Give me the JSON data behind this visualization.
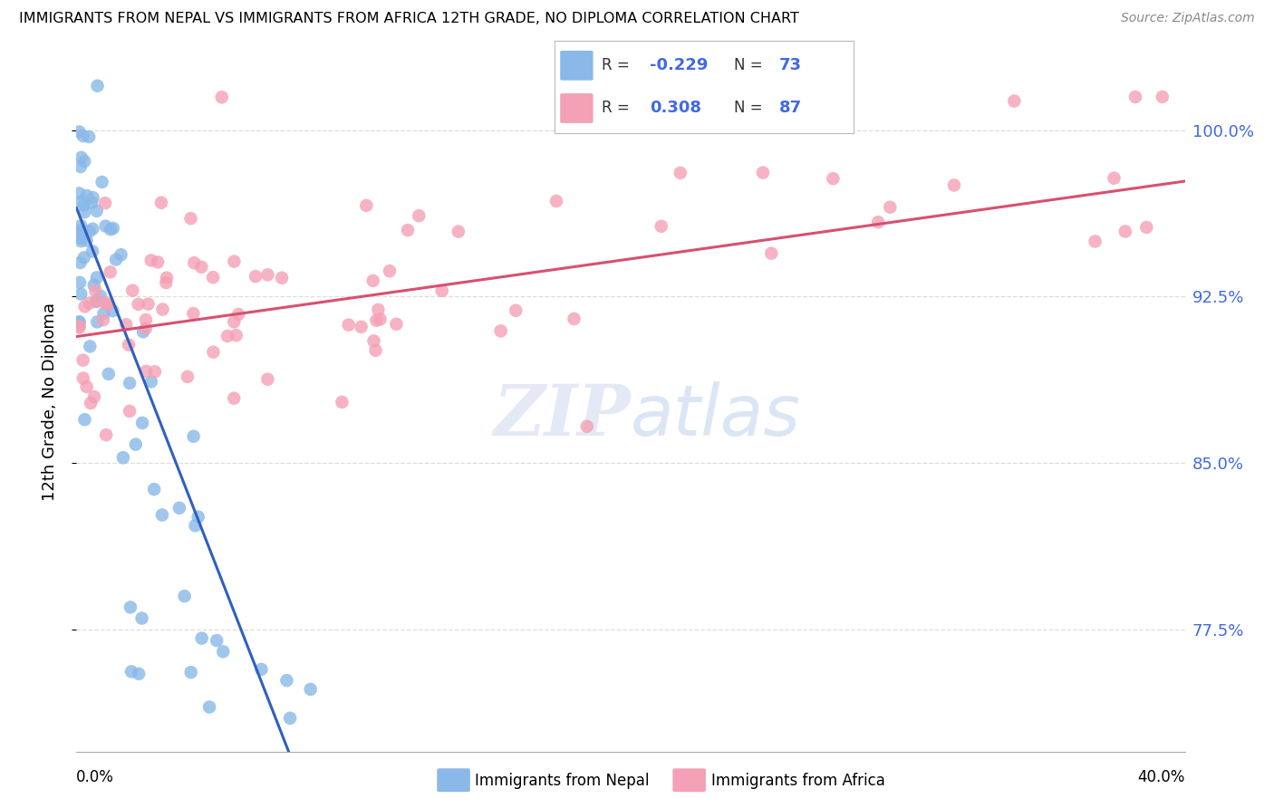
{
  "title": "IMMIGRANTS FROM NEPAL VS IMMIGRANTS FROM AFRICA 12TH GRADE, NO DIPLOMA CORRELATION CHART",
  "source": "Source: ZipAtlas.com",
  "ylabel_label": "12th Grade, No Diploma",
  "ytick_labels": [
    "100.0%",
    "92.5%",
    "85.0%",
    "77.5%"
  ],
  "ytick_values": [
    1.0,
    0.925,
    0.85,
    0.775
  ],
  "xlim": [
    0.0,
    0.4
  ],
  "ylim": [
    0.72,
    1.035
  ],
  "legend_nepal_r": "-0.229",
  "legend_nepal_n": "73",
  "legend_africa_r": "0.308",
  "legend_africa_n": "87",
  "nepal_color": "#8ab8e8",
  "africa_color": "#f4a0b5",
  "nepal_line_color": "#3060c0",
  "africa_line_color": "#d85070",
  "watermark_text": "ZIPatlas",
  "background_color": "#ffffff",
  "grid_color": "#dddddd"
}
